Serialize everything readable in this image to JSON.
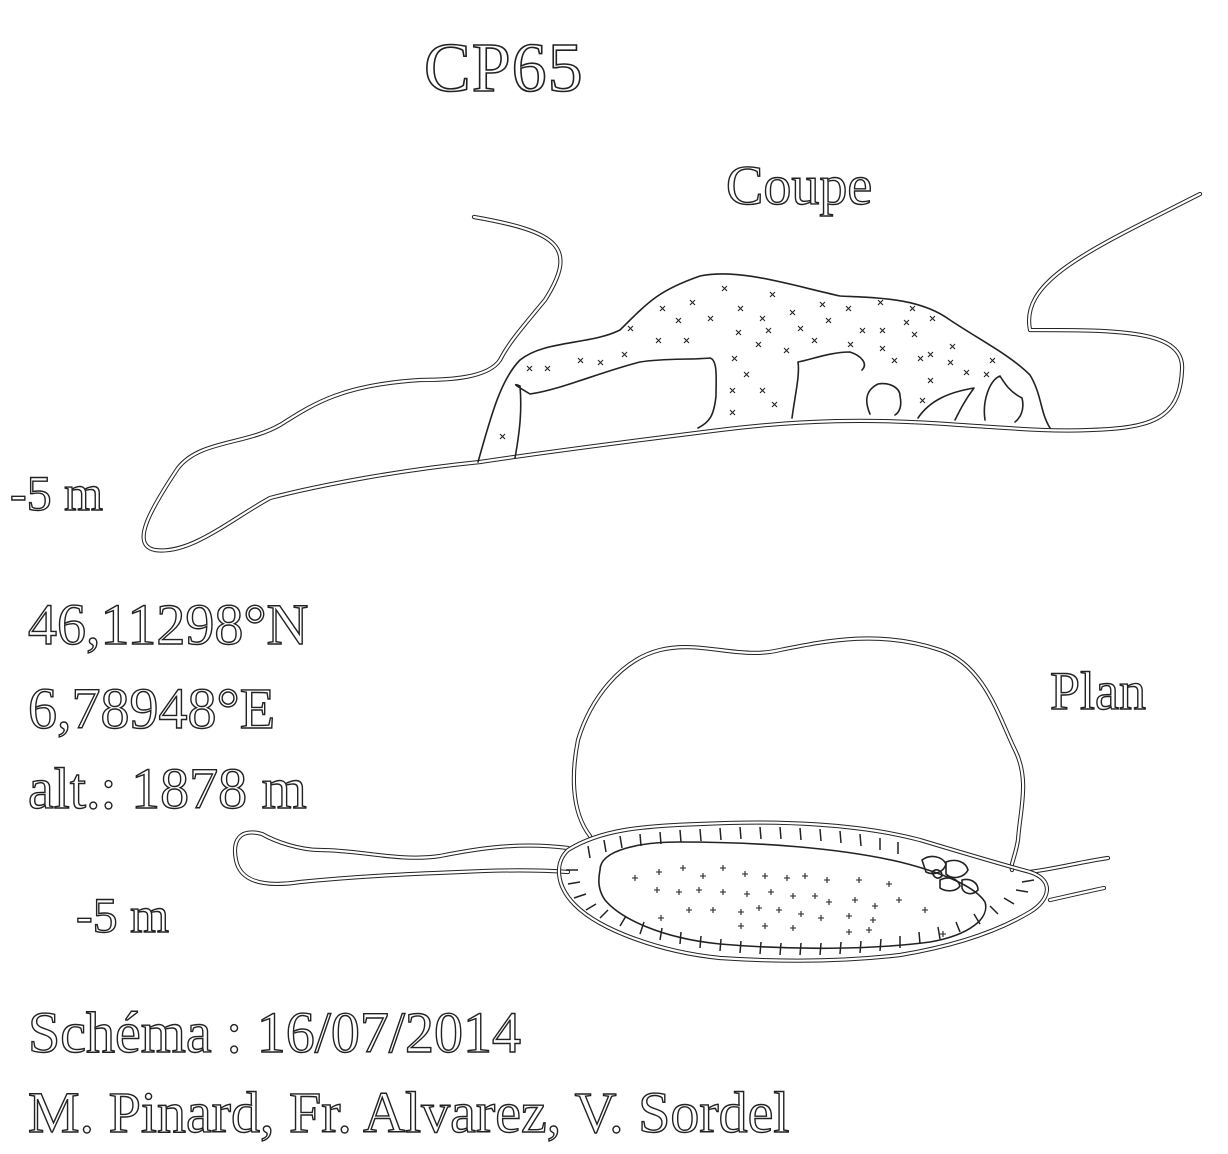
{
  "title": "CP65",
  "section": {
    "label": "Coupe",
    "depth_label": "-5 m"
  },
  "plan": {
    "label": "Plan",
    "depth_label": "-5 m"
  },
  "location": {
    "latitude": "46,11298°N",
    "longitude": "6,78948°E",
    "altitude": "alt.: 1878 m"
  },
  "credits": {
    "schema_date": "Schéma : 16/07/2014",
    "authors": "M. Pinard, Fr. Alvarez, V. Sordel"
  },
  "colors": {
    "ink": "#222222",
    "background": "#ffffff"
  }
}
